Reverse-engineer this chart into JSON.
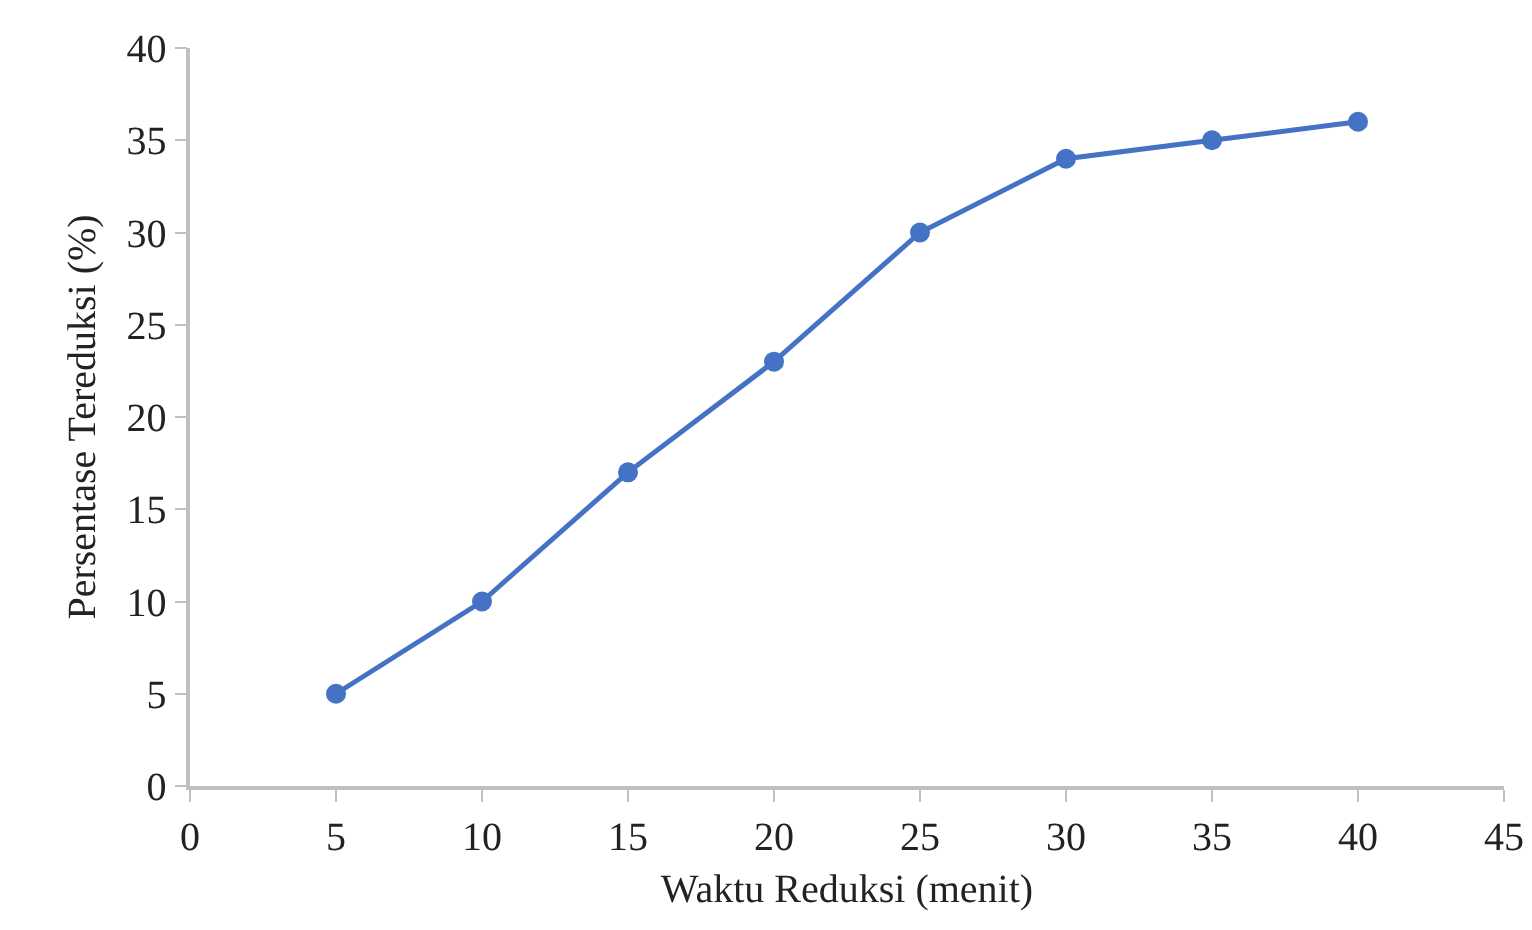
{
  "chart_data": {
    "type": "line",
    "xlabel": "Waktu Reduksi (menit)",
    "ylabel": "Persentase Tereduksi (%)",
    "x": [
      5,
      10,
      15,
      20,
      25,
      30,
      35,
      40
    ],
    "series": [
      {
        "color": "#4472c4",
        "values": [
          5,
          10,
          17,
          23,
          30,
          34,
          35,
          36
        ]
      }
    ],
    "xlim": [
      0,
      45
    ],
    "xticks": [
      0,
      5,
      10,
      15,
      20,
      25,
      30,
      35,
      40,
      45
    ],
    "ylim": [
      0,
      40
    ],
    "yticks": [
      0,
      5,
      10,
      15,
      20,
      25,
      30,
      35,
      40
    ],
    "grid": false,
    "legend": false,
    "marker": "circle",
    "line_style": "solid"
  }
}
